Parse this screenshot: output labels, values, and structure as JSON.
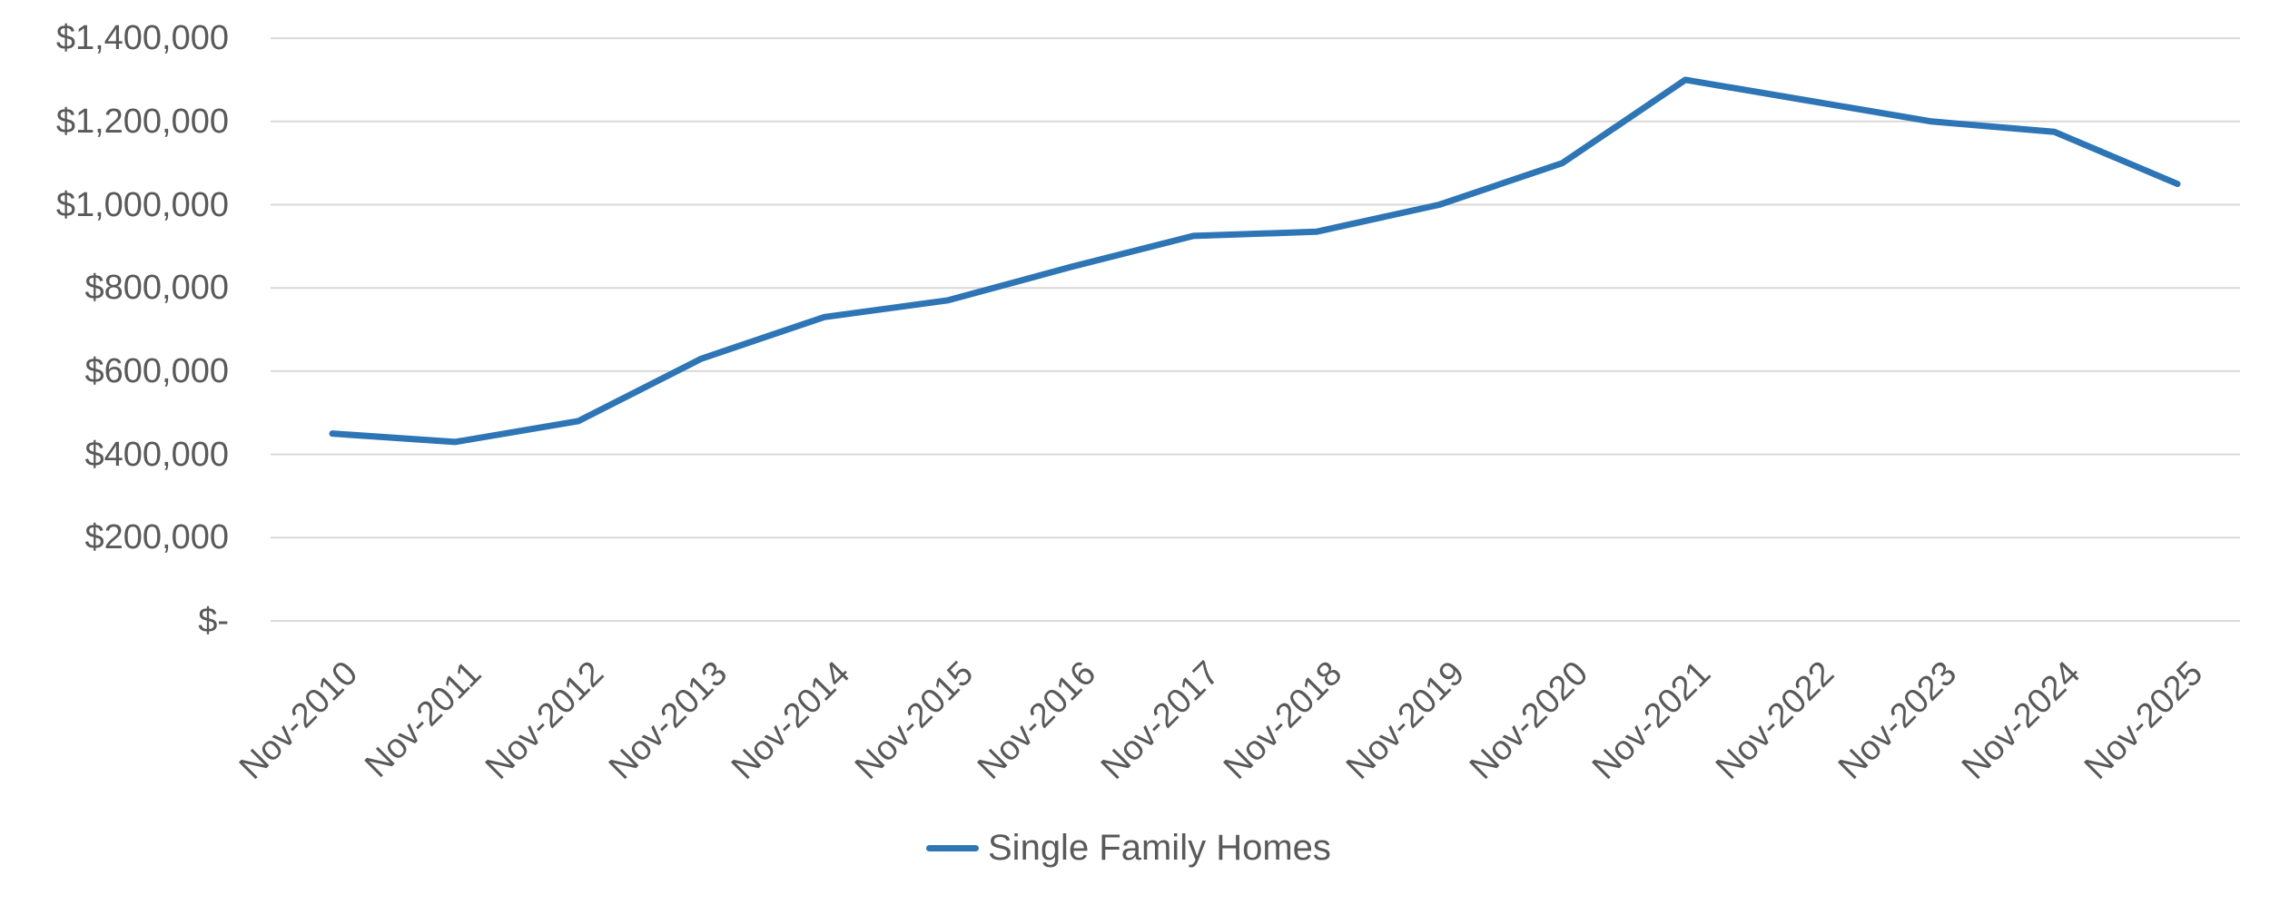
{
  "chart_data": {
    "type": "line",
    "categories": [
      "Nov-2010",
      "Nov-2011",
      "Nov-2012",
      "Nov-2013",
      "Nov-2014",
      "Nov-2015",
      "Nov-2016",
      "Nov-2017",
      "Nov-2018",
      "Nov-2019",
      "Nov-2020",
      "Nov-2021",
      "Nov-2022",
      "Nov-2023",
      "Nov-2024",
      "Nov-2025"
    ],
    "series": [
      {
        "name": "Single Family Homes",
        "values": [
          450000,
          430000,
          480000,
          630000,
          730000,
          770000,
          850000,
          925000,
          935000,
          1000000,
          1100000,
          1300000,
          1250000,
          1200000,
          1175000,
          1050000
        ]
      }
    ],
    "title": "",
    "xlabel": "",
    "ylabel": "",
    "ylim": [
      0,
      1400000
    ],
    "ytick_step": 200000,
    "yticks": [
      0,
      200000,
      400000,
      600000,
      800000,
      1000000,
      1200000,
      1400000
    ],
    "ytick_labels": [
      "$-",
      "$200,000",
      "$400,000",
      "$600,000",
      "$800,000",
      "$1,000,000",
      "$1,200,000",
      "$1,400,000"
    ],
    "grid": true,
    "legend_position": "bottom"
  },
  "colors": {
    "line": "#2E75B6",
    "gridline": "#D9D9D9",
    "tick_text": "#595959",
    "background": "#FFFFFF"
  }
}
